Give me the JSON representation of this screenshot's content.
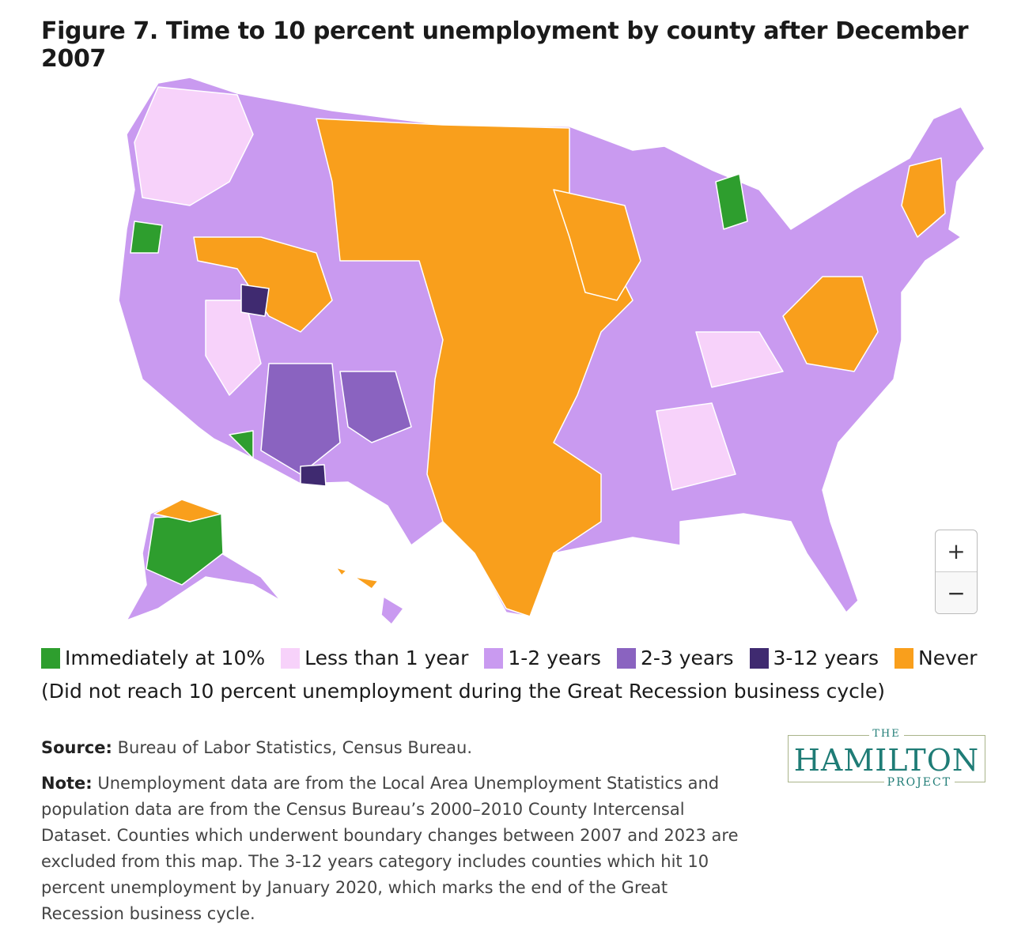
{
  "title": "Figure 7. Time to 10 percent unemployment by county after December 2007",
  "map": {
    "zoom_in": "+",
    "zoom_out": "−",
    "categories": {
      "immediate": "#2e9e2e",
      "lt1": "#f7d2fa",
      "y1_2": "#c99af0",
      "y2_3": "#8a63c0",
      "y3_12": "#3f2a70",
      "never": "#f99f1c",
      "nodata": "#dcdcdc"
    }
  },
  "legend": {
    "items": [
      {
        "label": "Immediately at 10%",
        "color": "#2e9e2e"
      },
      {
        "label": "Less than 1 year",
        "color": "#f7d2fa"
      },
      {
        "label": "1-2 years",
        "color": "#c99af0"
      },
      {
        "label": "2-3 years",
        "color": "#8a63c0"
      },
      {
        "label": "3-12 years",
        "color": "#3f2a70"
      },
      {
        "label": "Never",
        "color": "#f99f1c"
      }
    ],
    "note": "(Did not reach 10 percent unemployment during the Great Recession business cycle)"
  },
  "source": {
    "label": "Source:",
    "text": " Bureau of Labor Statistics, Census Bureau."
  },
  "note": {
    "label": "Note:",
    "text": " Unemployment data are from the Local Area Unemployment Statistics and population data are from the Census Bureau’s 2000–2010 County Intercensal Dataset. Counties which underwent boundary changes between 2007 and 2023 are excluded from this map. The 3-12 years category includes counties which hit 10 percent unemployment by January 2020, which marks the end of the Great Recession business cycle."
  },
  "logo": {
    "the": "THE",
    "name": "HAMILTON",
    "project": "PROJECT"
  }
}
